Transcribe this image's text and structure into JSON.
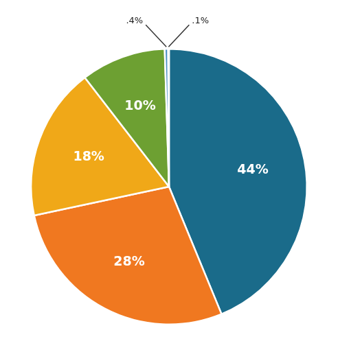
{
  "chart_data": {
    "type": "pie",
    "values": [
      44,
      28,
      18,
      10,
      0.4,
      0.1
    ],
    "value_labels": [
      "44%",
      "28%",
      "18%",
      "10%",
      ".4%",
      ".1%"
    ],
    "colors": [
      "#1a6b8a",
      "#f07820",
      "#f0a818",
      "#6da032",
      "#4a90c4",
      "#5a5a5a"
    ],
    "data_labels": true
  }
}
